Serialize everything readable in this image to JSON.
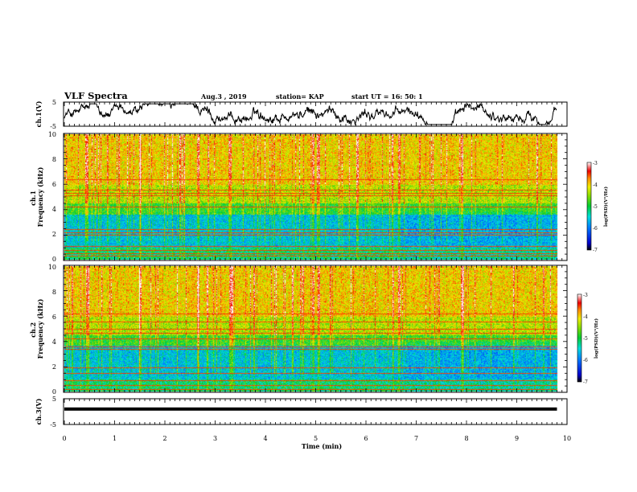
{
  "header": {
    "title": "VLF Spectra",
    "date": "Aug.3  , 2019",
    "station": "station= KAP",
    "start": "start  UT  =    16: 50: 1"
  },
  "chart_data": [
    {
      "type": "line",
      "ylabel": "ch.1(V)",
      "ylim": [
        -5,
        5
      ],
      "ytick_labels": [
        "5",
        "-5"
      ],
      "xlim": [
        0,
        10
      ],
      "series": [
        {
          "values": "noisy waveform, roughly -4 to 4 V"
        }
      ]
    },
    {
      "type": "heatmap",
      "ylabel": "ch.1\nFrequency  (kHz)",
      "ylim": [
        0,
        10
      ],
      "xlim": [
        0,
        10
      ],
      "ytick_labels": [
        "0",
        "2",
        "4",
        "6",
        "8",
        "10"
      ],
      "colorbar": {
        "label": "log(PSD)(V²/Hz)",
        "range": [
          -7,
          -3
        ],
        "tick_labels": [
          "-3",
          "-4",
          "-5",
          "-6",
          "-7"
        ]
      },
      "data_cols_end_min": 9.8,
      "horizontal_lines_khz": [
        0.3,
        0.5,
        0.8,
        1.1,
        2.0,
        2.2,
        2.45,
        4.25,
        5.1,
        5.3,
        5.6,
        6.4
      ],
      "vertical_events_min": [
        0.45,
        1.5,
        2.65,
        3.3,
        4.95,
        5.05,
        6.65,
        7.9
      ]
    },
    {
      "type": "heatmap",
      "ylabel": "ch.2\nFrequency  (kHz)",
      "ylim": [
        0,
        10
      ],
      "xlim": [
        0,
        10
      ],
      "ytick_labels": [
        "0",
        "2",
        "4",
        "6",
        "8",
        "10"
      ],
      "colorbar": {
        "label": "log(PSD)(V²/Hz)",
        "range": [
          -7,
          -3
        ],
        "tick_labels": [
          "-3",
          "-4",
          "-5",
          "-6",
          "-7"
        ]
      },
      "data_cols_end_min": 9.8,
      "horizontal_lines_khz": [
        0.2,
        0.5,
        0.9,
        1.5,
        1.9,
        3.4,
        3.6,
        4.2,
        4.7,
        5.0,
        5.6,
        6.2
      ],
      "vertical_events_min": [
        0.45,
        1.5,
        2.65,
        3.3,
        4.95,
        5.05,
        6.65,
        7.9
      ]
    },
    {
      "type": "line",
      "ylabel": "ch.3(V)",
      "ylim": [
        -5,
        5
      ],
      "ytick_labels": [
        "5",
        "-5"
      ],
      "xlim": [
        0,
        10
      ],
      "xlabel": "Time  (min)",
      "xtick_labels": [
        "0",
        "1",
        "2",
        "3",
        "4",
        "5",
        "6",
        "7",
        "8",
        "9",
        "10"
      ],
      "series": [
        {
          "values": "near-constant thick trace at about 1 V"
        }
      ],
      "level_v": 1
    }
  ]
}
